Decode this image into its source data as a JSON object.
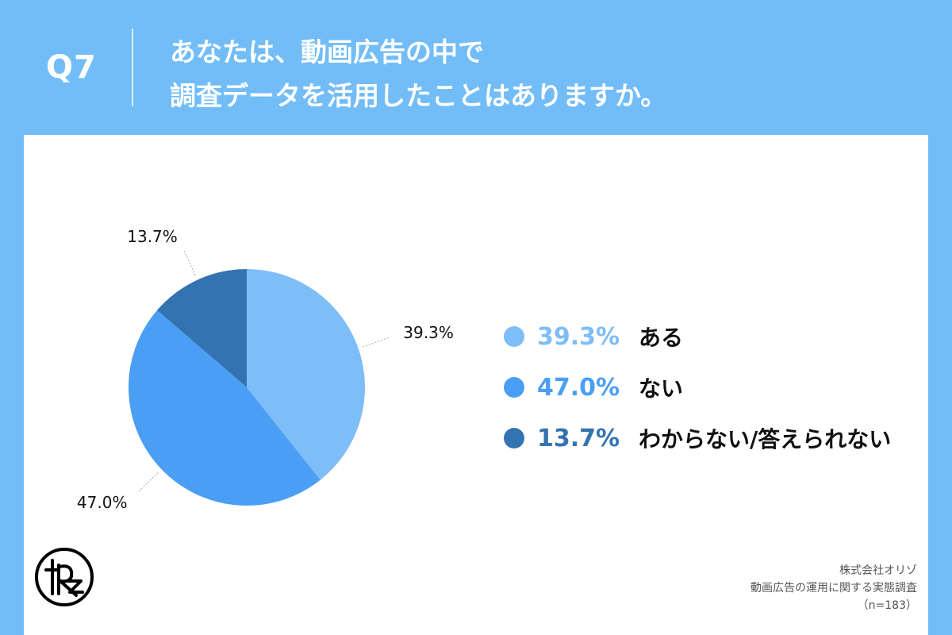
{
  "header": {
    "q_number": "Q7",
    "question_line1": "あなたは、動画広告の中で",
    "question_line2": "調査データを活用したことはありますか。"
  },
  "chart_data": {
    "type": "pie",
    "slices": [
      {
        "label": "ある",
        "value": 39.3,
        "value_label": "39.3%",
        "color": "#7dbdf8"
      },
      {
        "label": "ない",
        "value": 47.0,
        "value_label": "47.0%",
        "color": "#4a9ff5"
      },
      {
        "label": "わからない/答えられない",
        "value": 13.7,
        "value_label": "13.7%",
        "color": "#3473b2"
      }
    ],
    "legend_position": "right"
  },
  "source": {
    "company": "株式会社オリゾ",
    "survey": "動画広告の運用に関する実態調査",
    "sample": "（n=183）"
  },
  "colors": {
    "background": "#72bdf7",
    "panel": "#ffffff"
  },
  "logo": {
    "icon": "orizo-logo-icon"
  }
}
